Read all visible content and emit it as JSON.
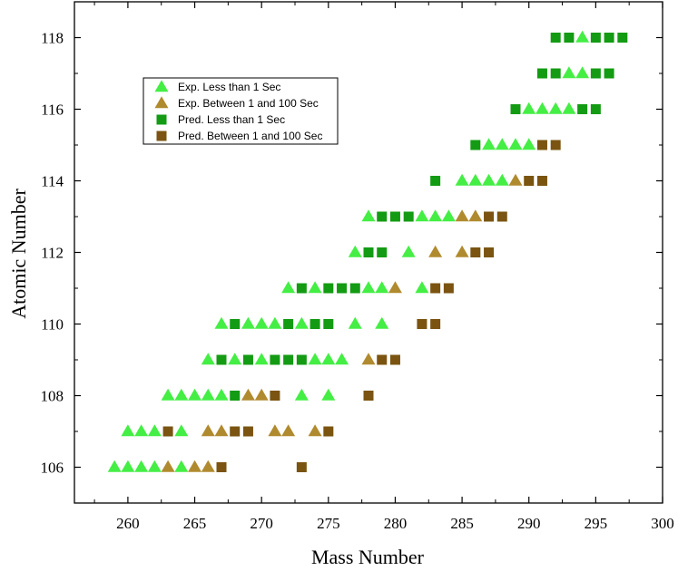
{
  "chart_data": {
    "type": "scatter",
    "xlabel": "Mass Number",
    "ylabel": "Atomic Number",
    "xlim": [
      256,
      300
    ],
    "ylim": [
      105,
      119
    ],
    "x_ticks": [
      260,
      265,
      270,
      275,
      280,
      285,
      290,
      295,
      300
    ],
    "y_ticks": [
      106,
      108,
      110,
      112,
      114,
      116,
      118
    ],
    "grid": false,
    "legend_position": "top-left",
    "series": [
      {
        "name": "Exp. Less than 1 Sec",
        "marker": "triangle",
        "color": "#44ee44",
        "points": [
          [
            259,
            106
          ],
          [
            260,
            106
          ],
          [
            261,
            106
          ],
          [
            262,
            106
          ],
          [
            264,
            106
          ],
          [
            260,
            107
          ],
          [
            261,
            107
          ],
          [
            262,
            107
          ],
          [
            264,
            107
          ],
          [
            263,
            108
          ],
          [
            264,
            108
          ],
          [
            265,
            108
          ],
          [
            266,
            108
          ],
          [
            267,
            108
          ],
          [
            273,
            108
          ],
          [
            275,
            108
          ],
          [
            266,
            109
          ],
          [
            268,
            109
          ],
          [
            270,
            109
          ],
          [
            274,
            109
          ],
          [
            275,
            109
          ],
          [
            276,
            109
          ],
          [
            267,
            110
          ],
          [
            269,
            110
          ],
          [
            270,
            110
          ],
          [
            271,
            110
          ],
          [
            273,
            110
          ],
          [
            277,
            110
          ],
          [
            279,
            110
          ],
          [
            272,
            111
          ],
          [
            274,
            111
          ],
          [
            278,
            111
          ],
          [
            279,
            111
          ],
          [
            282,
            111
          ],
          [
            277,
            112
          ],
          [
            281,
            112
          ],
          [
            278,
            113
          ],
          [
            282,
            113
          ],
          [
            283,
            113
          ],
          [
            284,
            113
          ],
          [
            285,
            114
          ],
          [
            286,
            114
          ],
          [
            287,
            114
          ],
          [
            288,
            114
          ],
          [
            287,
            115
          ],
          [
            288,
            115
          ],
          [
            289,
            115
          ],
          [
            290,
            115
          ],
          [
            290,
            116
          ],
          [
            291,
            116
          ],
          [
            292,
            116
          ],
          [
            293,
            116
          ],
          [
            293,
            117
          ],
          [
            294,
            117
          ],
          [
            294,
            118
          ]
        ]
      },
      {
        "name": "Exp. Between 1 and 100 Sec",
        "marker": "triangle",
        "color": "#b08a2e",
        "points": [
          [
            263,
            106
          ],
          [
            265,
            106
          ],
          [
            266,
            106
          ],
          [
            266,
            107
          ],
          [
            267,
            107
          ],
          [
            271,
            107
          ],
          [
            272,
            107
          ],
          [
            274,
            107
          ],
          [
            269,
            108
          ],
          [
            270,
            108
          ],
          [
            278,
            109
          ],
          [
            280,
            111
          ],
          [
            283,
            112
          ],
          [
            285,
            112
          ],
          [
            285,
            113
          ],
          [
            286,
            113
          ],
          [
            289,
            114
          ]
        ]
      },
      {
        "name": "Pred. Less than 1 Sec",
        "marker": "square",
        "color": "#139b13",
        "points": [
          [
            268,
            108
          ],
          [
            267,
            109
          ],
          [
            269,
            109
          ],
          [
            271,
            109
          ],
          [
            272,
            109
          ],
          [
            273,
            109
          ],
          [
            268,
            110
          ],
          [
            272,
            110
          ],
          [
            274,
            110
          ],
          [
            275,
            110
          ],
          [
            273,
            111
          ],
          [
            275,
            111
          ],
          [
            276,
            111
          ],
          [
            277,
            111
          ],
          [
            278,
            112
          ],
          [
            279,
            112
          ],
          [
            279,
            113
          ],
          [
            280,
            113
          ],
          [
            281,
            113
          ],
          [
            283,
            114
          ],
          [
            286,
            115
          ],
          [
            289,
            116
          ],
          [
            294,
            116
          ],
          [
            295,
            116
          ],
          [
            291,
            117
          ],
          [
            292,
            117
          ],
          [
            295,
            117
          ],
          [
            296,
            117
          ],
          [
            292,
            118
          ],
          [
            293,
            118
          ],
          [
            295,
            118
          ],
          [
            296,
            118
          ],
          [
            297,
            118
          ]
        ]
      },
      {
        "name": "Pred. Between 1 and 100 Sec",
        "marker": "square",
        "color": "#7a5410",
        "points": [
          [
            267,
            106
          ],
          [
            273,
            106
          ],
          [
            263,
            107
          ],
          [
            268,
            107
          ],
          [
            269,
            107
          ],
          [
            275,
            107
          ],
          [
            271,
            108
          ],
          [
            278,
            108
          ],
          [
            279,
            109
          ],
          [
            280,
            109
          ],
          [
            282,
            110
          ],
          [
            283,
            110
          ],
          [
            283,
            111
          ],
          [
            284,
            111
          ],
          [
            286,
            112
          ],
          [
            287,
            112
          ],
          [
            287,
            113
          ],
          [
            288,
            113
          ],
          [
            290,
            114
          ],
          [
            291,
            114
          ],
          [
            291,
            115
          ],
          [
            292,
            115
          ]
        ]
      }
    ]
  }
}
